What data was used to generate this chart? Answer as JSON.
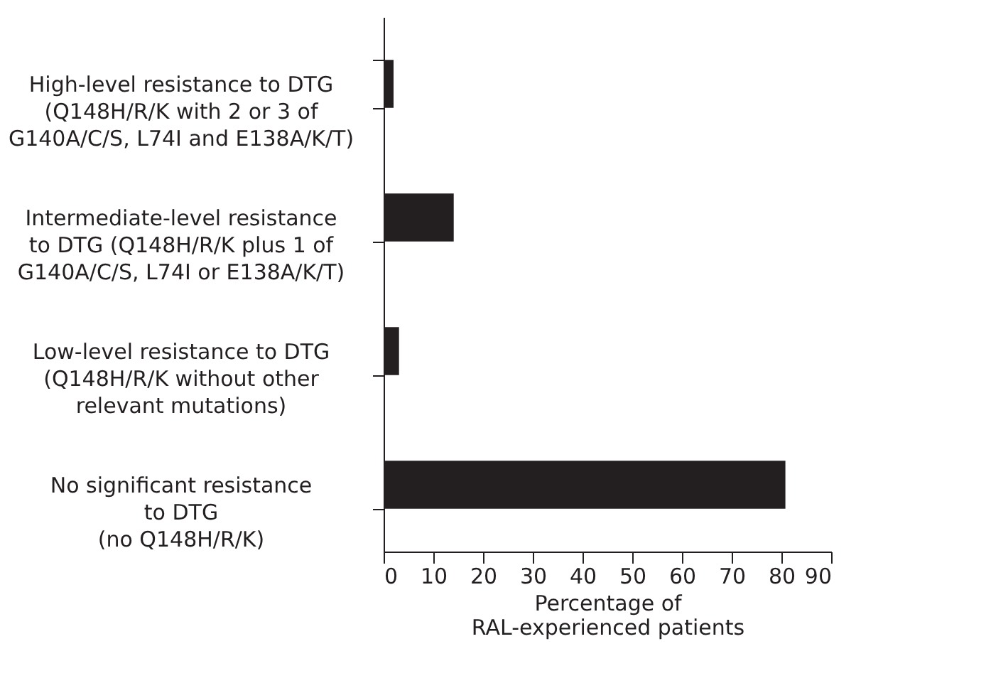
{
  "chart_data": {
    "type": "bar",
    "orientation": "horizontal",
    "xlabel": "Percentage of\nRAL-experienced patients",
    "categories": [
      "High-level resistance to DTG\n(Q148H/R/K with 2 or 3 of\nG140A/C/S, L74I and E138A/K/T)",
      "Intermediate-level resistance\nto DTG (Q148H/R/K plus 1 of\nG140A/C/S, L74I or E138A/K/T)",
      "Low-level resistance to DTG\n(Q148H/R/K without other\nrelevant mutations)",
      "No significant resistance\nto DTG\n(no Q148H/R/K)"
    ],
    "values": [
      2.0,
      14.1,
      3.1,
      80.8
    ],
    "color": "#231f20",
    "xlim": [
      0,
      90
    ],
    "xticks": [
      0,
      10,
      20,
      30,
      40,
      50,
      60,
      70,
      80,
      90
    ],
    "grid": false
  }
}
